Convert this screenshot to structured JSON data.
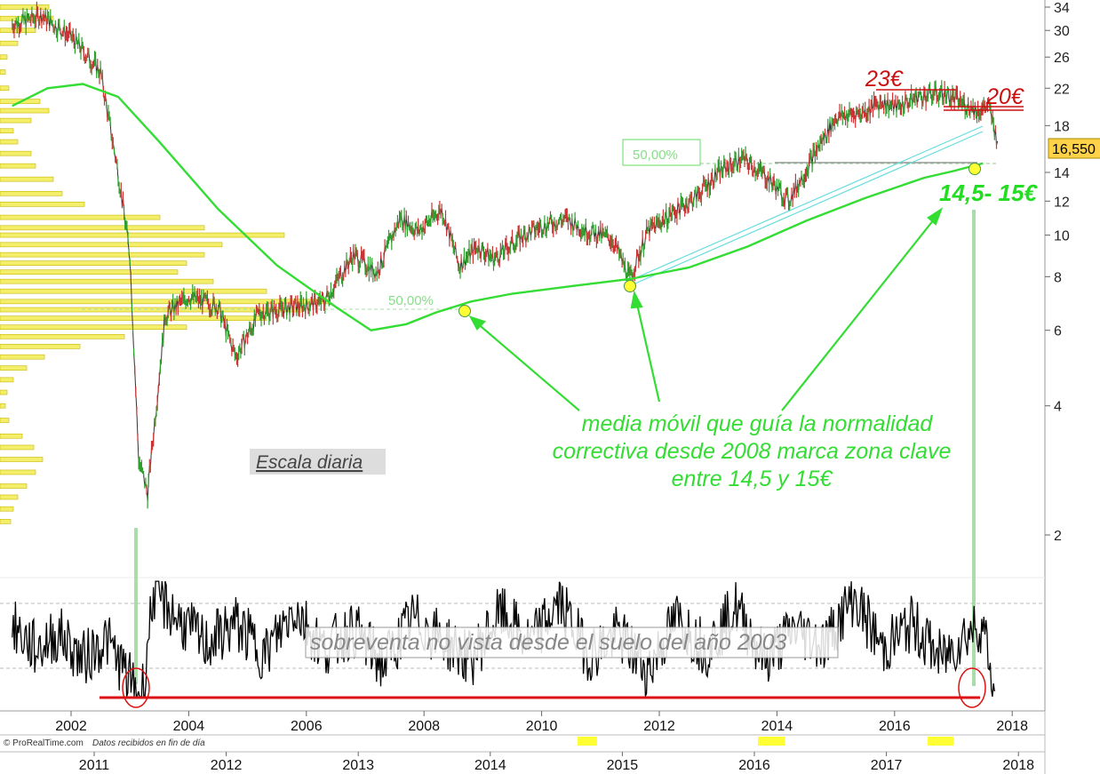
{
  "chart_data": {
    "type": "line",
    "scale": "log",
    "ylim": [
      2,
      34
    ],
    "y_ticks": [
      "2",
      "4",
      "6",
      "8",
      "10",
      "12",
      "14",
      "18",
      "22",
      "26",
      "30",
      "34"
    ],
    "current_price": "16,550",
    "bottom_axis_years": [
      "2002",
      "2004",
      "2006",
      "2008",
      "2010",
      "2012",
      "2014",
      "2016",
      "2018"
    ],
    "top_axis_years": [
      "2011",
      "2012",
      "2013",
      "2014",
      "2015",
      "2016",
      "2017",
      "2018"
    ],
    "price_path": {
      "x": [
        2001.0,
        2001.5,
        2002.0,
        2002.5,
        2002.8,
        2003.0,
        2003.15,
        2003.3,
        2003.6,
        2004.0,
        2004.5,
        2004.8,
        2005.2,
        2005.8,
        2006.3,
        2006.8,
        2007.2,
        2007.6,
        2007.9,
        2008.3,
        2008.6,
        2008.9,
        2009.2,
        2009.6,
        2010.0,
        2010.4,
        2010.8,
        2011.2,
        2011.5,
        2011.8,
        2012.2,
        2012.6,
        2013.0,
        2013.4,
        2013.8,
        2014.2,
        2014.7,
        2015.0,
        2015.5,
        2015.8,
        2016.0,
        2016.4,
        2016.8,
        2017.1,
        2017.4,
        2017.6,
        2017.75
      ],
      "values": [
        31,
        32.5,
        29,
        24,
        14,
        9,
        3.0,
        2.5,
        6.5,
        7.2,
        6.8,
        5.2,
        6.6,
        6.8,
        7.0,
        9.0,
        8.2,
        11.0,
        10.2,
        11.5,
        8.5,
        9.4,
        8.8,
        9.8,
        10.5,
        10.9,
        10.2,
        9.8,
        7.9,
        10.2,
        11.2,
        12.2,
        14.0,
        15.1,
        13.8,
        12.0,
        16.0,
        18.8,
        19.4,
        20.5,
        19.8,
        21.0,
        21.5,
        20.5,
        19.5,
        20.0,
        16.55
      ]
    },
    "moving_average": {
      "x": [
        2001.0,
        2001.6,
        2002.2,
        2002.8,
        2003.5,
        2004.5,
        2005.5,
        2006.5,
        2007.1,
        2007.7,
        2008.2,
        2008.8,
        2009.5,
        2010.5,
        2011.5,
        2012.5,
        2013.5,
        2014.5,
        2015.5,
        2016.5,
        2017.0,
        2017.5
      ],
      "values": [
        20.0,
        22.0,
        22.5,
        21.0,
        16.5,
        11.5,
        8.5,
        6.8,
        6.0,
        6.2,
        6.6,
        7.0,
        7.3,
        7.6,
        7.9,
        8.4,
        9.4,
        10.8,
        12.2,
        13.6,
        14.1,
        14.7
      ]
    },
    "oscillator": {
      "x": [
        2001.0,
        2001.4,
        2001.8,
        2002.2,
        2002.6,
        2003.0,
        2003.2,
        2003.4,
        2003.8,
        2004.3,
        2004.8,
        2005.3,
        2005.8,
        2006.3,
        2006.8,
        2007.3,
        2007.8,
        2008.3,
        2008.8,
        2009.3,
        2009.8,
        2010.3,
        2010.8,
        2011.3,
        2011.8,
        2012.3,
        2012.8,
        2013.3,
        2013.8,
        2014.3,
        2014.8,
        2015.3,
        2015.8,
        2016.3,
        2016.8,
        2017.2,
        2017.5,
        2017.7
      ],
      "values": [
        0.62,
        0.4,
        0.55,
        0.3,
        0.5,
        0.1,
        -0.05,
        0.95,
        0.7,
        0.45,
        0.65,
        0.35,
        0.8,
        0.4,
        0.6,
        0.25,
        0.7,
        0.5,
        0.3,
        0.75,
        0.45,
        0.85,
        0.35,
        0.55,
        0.2,
        0.7,
        0.4,
        0.8,
        0.3,
        0.6,
        0.45,
        0.9,
        0.4,
        0.65,
        0.3,
        0.55,
        0.65,
        0.0
      ]
    },
    "annotations": {
      "fib_label_left": "50,00%",
      "fib_label_right": "50,00%",
      "level_23": "23€",
      "level_20": "20€",
      "target_zone": "14,5- 15€",
      "note_lines": [
        "media móvil que guía la normalidad",
        "correctiva desde 2008 marca zona clave",
        "entre 14,5 y 15€"
      ],
      "scale_label": "Escala diaria",
      "oversold_note": "sobreventa no vista desde el suelo del año 2003"
    },
    "footer": {
      "copyright": "© ProRealTime.com",
      "data_note": "Datos recibidos en fin de día"
    }
  }
}
